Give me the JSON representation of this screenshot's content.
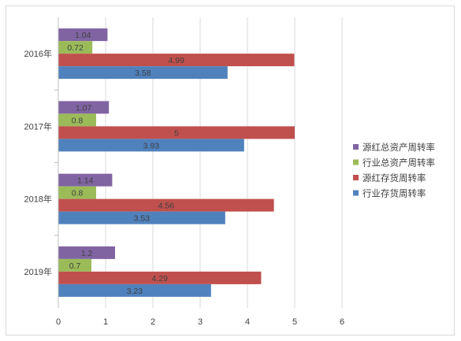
{
  "chart_data": {
    "type": "bar",
    "orientation": "horizontal",
    "categories": [
      "2016年",
      "2017年",
      "2018年",
      "2019年"
    ],
    "series": [
      {
        "name": "源红总资产周转率",
        "color": "#8064a2",
        "values": [
          1.04,
          1.07,
          1.14,
          1.2
        ],
        "labels": [
          "1.04",
          "1.07",
          "1.14",
          "1.2"
        ]
      },
      {
        "name": "行业总资产周转率",
        "color": "#9bbb59",
        "values": [
          0.72,
          0.8,
          0.8,
          0.7
        ],
        "labels": [
          "0.72",
          "0.8",
          "0.8",
          "0.7"
        ]
      },
      {
        "name": "源红存货周转率",
        "color": "#c0504d",
        "values": [
          4.99,
          5,
          4.56,
          4.29
        ],
        "labels": [
          "4.99",
          "5",
          "4.56",
          "4.29"
        ]
      },
      {
        "name": "行业存货周转率",
        "color": "#4f81bd",
        "values": [
          3.58,
          3.93,
          3.53,
          3.23
        ],
        "labels": [
          "3.58",
          "3.93",
          "3.53",
          "3.23"
        ]
      }
    ],
    "xlim": [
      0,
      6
    ],
    "x_ticks": [
      "0",
      "1",
      "2",
      "3",
      "4",
      "5",
      "6"
    ],
    "grid": true,
    "legend_position": "right",
    "legend_order": [
      "源红总资产周转率",
      "行业总资产周转率",
      "源红存货周转率",
      "行业存货周转率"
    ]
  }
}
